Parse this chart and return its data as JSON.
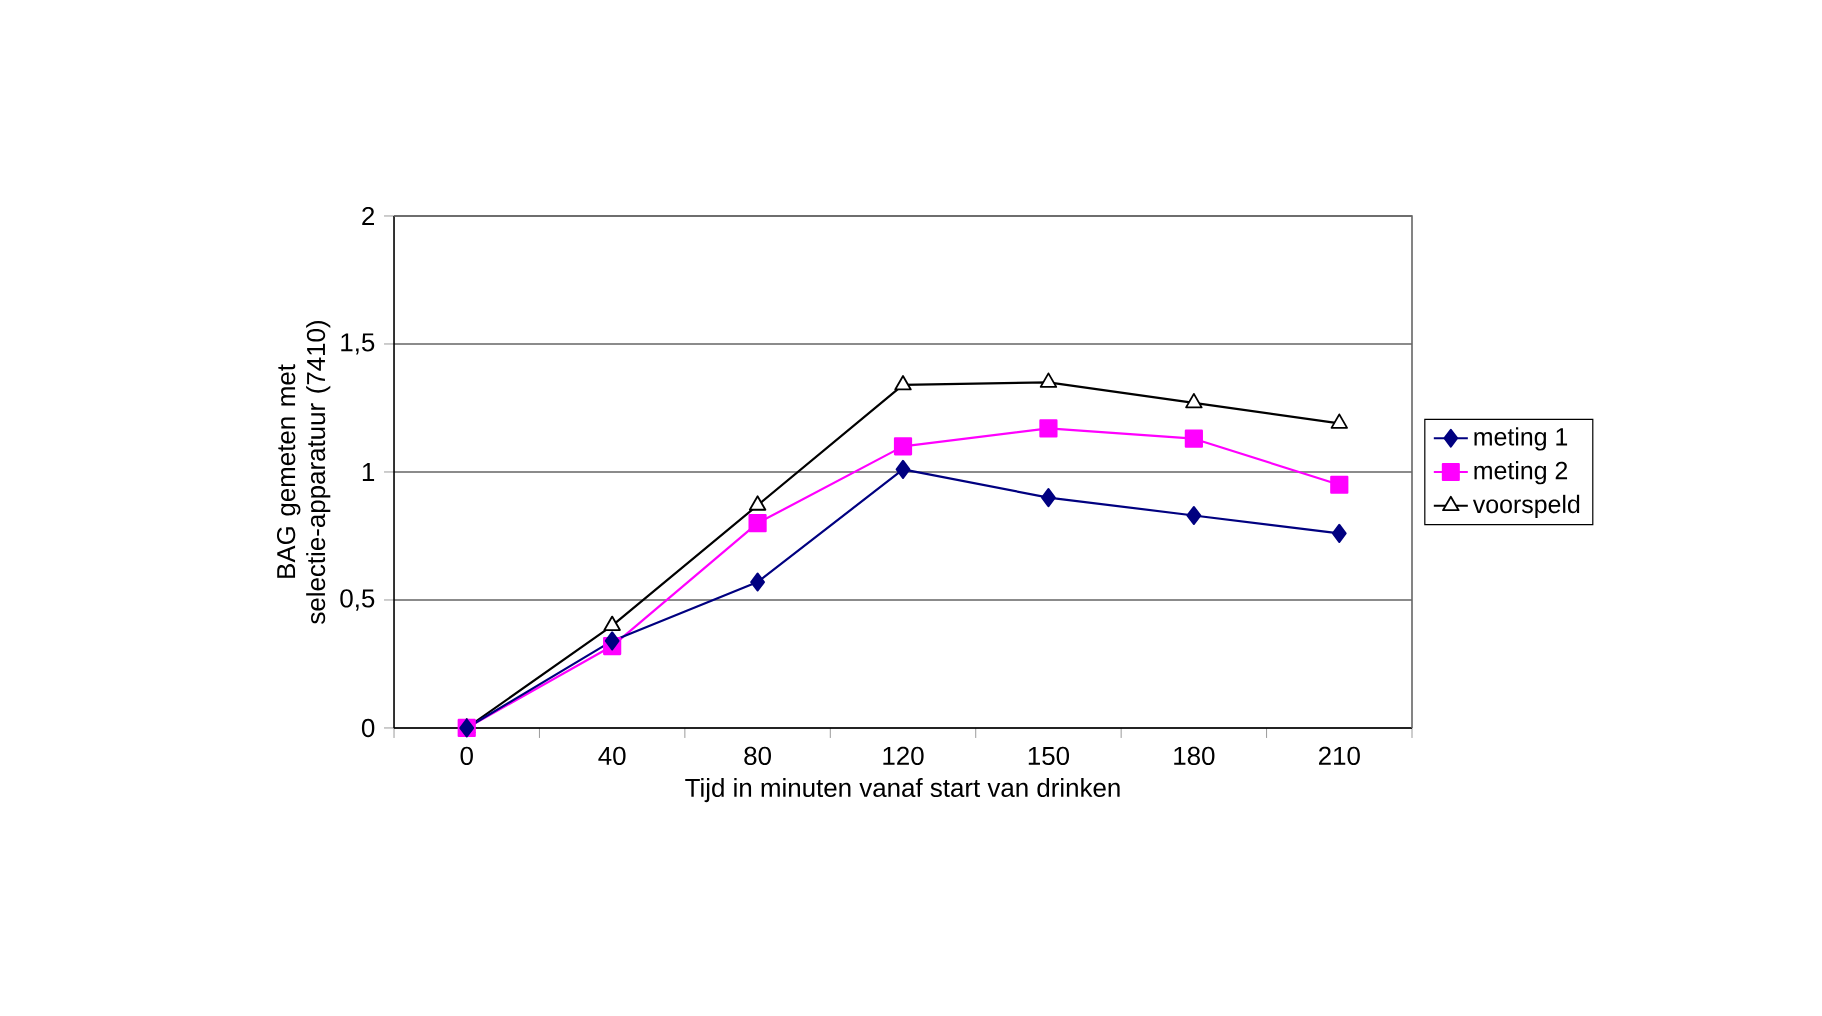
{
  "chart_data": {
    "type": "line",
    "xlabel": "Tijd in minuten vanaf start van drinken",
    "ylabel": "BAG gemeten met selectie-apparatuur (7410)",
    "categories": [
      "0",
      "40",
      "80",
      "120",
      "150",
      "180",
      "210"
    ],
    "series": [
      {
        "name": "meting 1",
        "color": "#000080",
        "marker": "diamond",
        "values": [
          0,
          0.34,
          0.57,
          1.01,
          0.9,
          0.83,
          0.76
        ]
      },
      {
        "name": "meting 2",
        "color": "#ff00ff",
        "marker": "square",
        "values": [
          0,
          0.32,
          0.8,
          1.1,
          1.17,
          1.13,
          0.95
        ]
      },
      {
        "name": "voorspeld",
        "color": "#000000",
        "marker": "triangle",
        "values": [
          0,
          0.4,
          0.87,
          1.34,
          1.35,
          1.27,
          1.19
        ]
      }
    ],
    "ylim": [
      0,
      2
    ],
    "yticks": [
      0,
      {
        "value": 0.5,
        "label": "0,5"
      },
      1,
      {
        "value": 1.5,
        "label": "1,5"
      },
      2
    ],
    "grid": "y",
    "legend": "right",
    "line_style": "solid"
  }
}
